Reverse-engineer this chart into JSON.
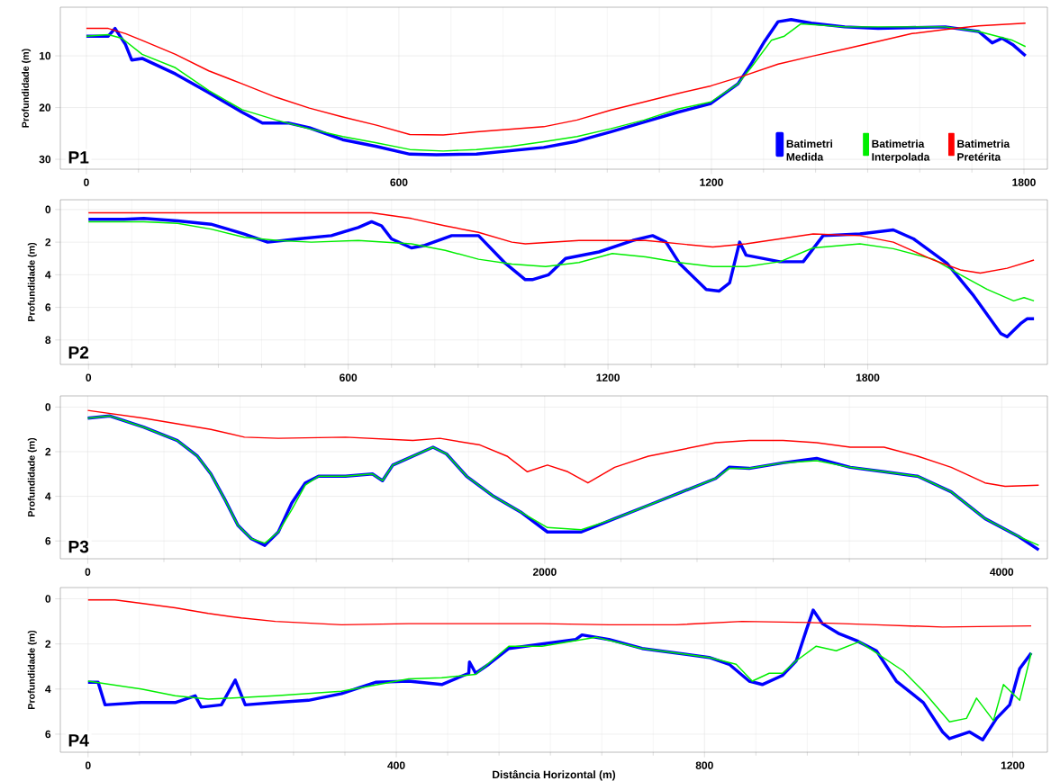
{
  "chart_data": [
    {
      "type": "line",
      "title": "P1",
      "ylabel": "Profundidade (m)",
      "xlim": [
        -50,
        1845
      ],
      "ylim": [
        31.9,
        0.6
      ],
      "xticks": [
        0,
        600,
        1200,
        1800
      ],
      "yticks": [
        10,
        20,
        30
      ],
      "grid": true,
      "legend": "bottom right",
      "series": [
        {
          "name": "Batimetri Medida",
          "color": "#0000ff",
          "x": [
            0,
            42,
            55,
            75,
            87,
            107,
            171,
            235,
            299,
            338,
            389,
            428,
            492,
            557,
            621,
            672,
            749,
            878,
            942,
            1006,
            1071,
            1135,
            1199,
            1251,
            1276,
            1302,
            1328,
            1353,
            1392,
            1456,
            1520,
            1649,
            1713,
            1739,
            1758,
            1778,
            1803
          ],
          "values": [
            6.2,
            6.2,
            4.7,
            7.8,
            10.8,
            10.5,
            13.5,
            17.1,
            20.9,
            23.0,
            23.0,
            23.9,
            26.2,
            27.5,
            29.0,
            29.1,
            29.0,
            27.7,
            26.5,
            24.7,
            22.8,
            20.9,
            19.2,
            15.4,
            11.6,
            7.2,
            3.4,
            3.0,
            3.7,
            4.4,
            4.7,
            4.4,
            5.3,
            7.5,
            6.6,
            7.8,
            10.0
          ]
        },
        {
          "name": "Batimetria Interpolada",
          "color": "#00ee00",
          "x": [
            0,
            42,
            68,
            107,
            171,
            235,
            299,
            364,
            428,
            492,
            557,
            621,
            685,
            749,
            814,
            878,
            942,
            1006,
            1071,
            1135,
            1199,
            1251,
            1276,
            1315,
            1340,
            1372,
            1456,
            1649,
            1713,
            1778,
            1803
          ],
          "values": [
            6.2,
            5.9,
            6.6,
            9.7,
            12.3,
            16.7,
            20.4,
            22.4,
            24.1,
            25.6,
            26.8,
            28.1,
            28.4,
            28.1,
            27.5,
            26.6,
            25.6,
            24.1,
            22.4,
            20.3,
            18.9,
            15.4,
            12.3,
            7.0,
            6.2,
            3.8,
            4.4,
            4.4,
            5.3,
            7.0,
            8.2
          ]
        },
        {
          "name": "Batimetria Pretérita",
          "color": "#ff0000",
          "x": [
            0,
            42,
            75,
            107,
            171,
            235,
            299,
            364,
            428,
            492,
            557,
            621,
            685,
            749,
            878,
            942,
            1006,
            1071,
            1135,
            1199,
            1264,
            1328,
            1392,
            1456,
            1520,
            1585,
            1649,
            1713,
            1803
          ],
          "values": [
            4.7,
            4.7,
            5.7,
            7.0,
            9.7,
            12.9,
            15.4,
            18.0,
            20.1,
            21.8,
            23.4,
            25.2,
            25.3,
            24.7,
            23.7,
            22.4,
            20.5,
            18.9,
            17.3,
            15.8,
            13.8,
            11.6,
            10.1,
            8.7,
            7.2,
            5.7,
            4.9,
            4.2,
            3.7
          ]
        }
      ]
    },
    {
      "type": "line",
      "title": "P2",
      "ylabel": "Profundidade (m)",
      "xlim": [
        -65,
        2215
      ],
      "ylim": [
        9.5,
        -0.6
      ],
      "xticks": [
        0,
        600,
        1200,
        1800
      ],
      "yticks": [
        0,
        2,
        4,
        6,
        8
      ],
      "grid": true,
      "series": [
        {
          "color": "#0000ff",
          "x": [
            0,
            82,
            128,
            206,
            283,
            360,
            414,
            484,
            561,
            623,
            654,
            677,
            700,
            746,
            777,
            839,
            901,
            963,
            1009,
            1025,
            1063,
            1102,
            1179,
            1257,
            1303,
            1334,
            1365,
            1427,
            1457,
            1481,
            1504,
            1519,
            1597,
            1651,
            1697,
            1782,
            1859,
            1906,
            1983,
            2045,
            2107,
            2122,
            2153,
            2168,
            2184
          ],
          "values": [
            0.6,
            0.6,
            0.55,
            0.7,
            0.9,
            1.5,
            2.0,
            1.8,
            1.6,
            1.1,
            0.75,
            1.0,
            1.8,
            2.35,
            2.2,
            1.6,
            1.6,
            3.3,
            4.3,
            4.3,
            4.0,
            3.0,
            2.6,
            1.9,
            1.6,
            2.0,
            3.3,
            4.9,
            5.0,
            4.5,
            2.0,
            2.8,
            3.2,
            3.2,
            1.6,
            1.5,
            1.25,
            1.8,
            3.3,
            5.3,
            7.6,
            7.8,
            7.0,
            6.7,
            6.7
          ]
        },
        {
          "color": "#00ee00",
          "x": [
            0,
            128,
            206,
            283,
            360,
            437,
            515,
            623,
            746,
            824,
            901,
            978,
            1056,
            1133,
            1210,
            1287,
            1365,
            1442,
            1519,
            1597,
            1674,
            1782,
            1859,
            1952,
            2014,
            2076,
            2137,
            2161,
            2184
          ],
          "values": [
            0.75,
            0.75,
            0.85,
            1.2,
            1.7,
            1.9,
            2.0,
            1.9,
            2.1,
            2.5,
            3.05,
            3.35,
            3.5,
            3.25,
            2.7,
            2.9,
            3.25,
            3.5,
            3.5,
            3.2,
            2.35,
            2.1,
            2.4,
            3.05,
            4.0,
            4.9,
            5.6,
            5.4,
            5.6
          ]
        },
        {
          "color": "#ff0000",
          "x": [
            0,
            654,
            746,
            824,
            901,
            978,
            1009,
            1133,
            1287,
            1442,
            1519,
            1674,
            1782,
            1859,
            1952,
            2014,
            2060,
            2122,
            2184
          ],
          "values": [
            0.2,
            0.2,
            0.55,
            1.0,
            1.4,
            2.0,
            2.1,
            1.9,
            1.9,
            2.3,
            2.1,
            1.5,
            1.6,
            2.0,
            3.1,
            3.7,
            3.9,
            3.6,
            3.1
          ]
        }
      ]
    },
    {
      "type": "line",
      "title": "P3",
      "ylabel": "Profundidade (m)",
      "xlim": [
        -120,
        4200
      ],
      "ylim": [
        6.8,
        -0.5
      ],
      "xticks": [
        0,
        2000,
        4000
      ],
      "yticks": [
        0,
        2,
        4,
        6
      ],
      "grid": true,
      "series": [
        {
          "color": "#0000ff",
          "x": [
            0,
            97,
            244,
            392,
            480,
            539,
            598,
            657,
            716,
            775,
            834,
            893,
            952,
            1010,
            1128,
            1246,
            1290,
            1335,
            1423,
            1511,
            1570,
            1658,
            1776,
            1894,
            2012,
            2160,
            2306,
            2454,
            2601,
            2748,
            2807,
            2895,
            3043,
            3190,
            3337,
            3485,
            3632,
            3779,
            3927,
            4074,
            4162
          ],
          "values": [
            0.5,
            0.4,
            0.9,
            1.5,
            2.2,
            3.0,
            4.1,
            5.3,
            5.9,
            6.2,
            5.6,
            4.3,
            3.4,
            3.1,
            3.1,
            3.0,
            3.3,
            2.6,
            2.2,
            1.8,
            2.1,
            3.1,
            4.0,
            4.7,
            5.6,
            5.6,
            5.0,
            4.4,
            3.8,
            3.2,
            2.7,
            2.75,
            2.5,
            2.3,
            2.7,
            2.9,
            3.1,
            3.8,
            5.0,
            5.8,
            6.4
          ]
        },
        {
          "color": "#00ee00",
          "x": [
            0,
            97,
            244,
            392,
            480,
            539,
            598,
            657,
            716,
            775,
            834,
            893,
            952,
            1010,
            1128,
            1246,
            1290,
            1335,
            1423,
            1511,
            1570,
            1658,
            1776,
            1894,
            2012,
            2160,
            2306,
            2454,
            2601,
            2748,
            2807,
            2895,
            3043,
            3190,
            3337,
            3485,
            3632,
            3779,
            3927,
            4074,
            4162
          ],
          "values": [
            0.5,
            0.4,
            0.9,
            1.5,
            2.2,
            3.0,
            4.1,
            5.3,
            5.9,
            6.1,
            5.6,
            4.6,
            3.5,
            3.1,
            3.1,
            3.0,
            3.3,
            2.6,
            2.2,
            1.8,
            2.1,
            3.1,
            4.0,
            4.7,
            5.4,
            5.5,
            5.0,
            4.4,
            3.8,
            3.2,
            2.75,
            2.75,
            2.5,
            2.4,
            2.7,
            2.9,
            3.1,
            3.8,
            5.0,
            5.8,
            6.2
          ]
        },
        {
          "color": "#ff0000",
          "x": [
            0,
            244,
            539,
            686,
            834,
            1128,
            1423,
            1541,
            1717,
            1835,
            1924,
            2012,
            2101,
            2189,
            2306,
            2454,
            2601,
            2748,
            2895,
            3043,
            3190,
            3337,
            3485,
            3632,
            3779,
            3927,
            4015,
            4162
          ],
          "values": [
            0.15,
            0.5,
            1.0,
            1.35,
            1.4,
            1.35,
            1.5,
            1.4,
            1.7,
            2.2,
            2.9,
            2.6,
            2.9,
            3.4,
            2.7,
            2.2,
            1.9,
            1.6,
            1.5,
            1.5,
            1.6,
            1.8,
            1.8,
            2.2,
            2.7,
            3.4,
            3.55,
            3.5
          ]
        }
      ]
    },
    {
      "type": "line",
      "title": "P4",
      "xlabel": "Distância Horizontal (m)",
      "ylabel": "Profundidade (m)",
      "xlim": [
        -36,
        1245
      ],
      "ylim": [
        6.8,
        -0.5
      ],
      "xticks": [
        0,
        400,
        800,
        1200
      ],
      "yticks": [
        0,
        2,
        4,
        6
      ],
      "grid": true,
      "series": [
        {
          "color": "#0000ff",
          "x": [
            0,
            13,
            22,
            69,
            113,
            139,
            147,
            173,
            191,
            204,
            243,
            286,
            329,
            373,
            416,
            459,
            494,
            495,
            503,
            520,
            546,
            589,
            633,
            641,
            676,
            719,
            763,
            806,
            832,
            858,
            875,
            901,
            919,
            932,
            941,
            953,
            975,
            997,
            1023,
            1049,
            1084,
            1109,
            1118,
            1144,
            1161,
            1179,
            1196,
            1209,
            1224
          ],
          "values": [
            3.7,
            3.7,
            4.7,
            4.6,
            4.6,
            4.3,
            4.8,
            4.7,
            3.6,
            4.7,
            4.6,
            4.5,
            4.2,
            3.7,
            3.65,
            3.8,
            3.3,
            2.8,
            3.3,
            2.9,
            2.2,
            2.0,
            1.8,
            1.6,
            1.8,
            2.2,
            2.4,
            2.6,
            2.9,
            3.65,
            3.8,
            3.4,
            2.75,
            1.4,
            0.5,
            1.1,
            1.55,
            1.85,
            2.3,
            3.65,
            4.6,
            5.9,
            6.2,
            5.9,
            6.25,
            5.3,
            4.7,
            3.1,
            2.4
          ]
        },
        {
          "color": "#00ee00",
          "x": [
            0,
            69,
            113,
            156,
            243,
            329,
            416,
            459,
            503,
            546,
            589,
            659,
            719,
            806,
            841,
            862,
            884,
            901,
            919,
            945,
            971,
            1001,
            1023,
            1058,
            1084,
            1118,
            1140,
            1153,
            1175,
            1188,
            1209,
            1224
          ],
          "values": [
            3.65,
            4.0,
            4.3,
            4.45,
            4.3,
            4.1,
            3.55,
            3.5,
            3.35,
            2.1,
            2.1,
            1.7,
            2.2,
            2.6,
            2.9,
            3.65,
            3.3,
            3.3,
            2.75,
            2.1,
            2.3,
            1.9,
            2.4,
            3.2,
            4.1,
            5.45,
            5.3,
            4.4,
            5.4,
            3.8,
            4.5,
            2.4
          ]
        },
        {
          "color": "#ff0000",
          "x": [
            0,
            35,
            69,
            113,
            156,
            199,
            243,
            329,
            416,
            589,
            676,
            763,
            849,
            936,
            1023,
            1109,
            1224
          ],
          "values": [
            0.05,
            0.05,
            0.2,
            0.4,
            0.65,
            0.85,
            1.0,
            1.15,
            1.1,
            1.1,
            1.15,
            1.15,
            1.0,
            1.05,
            1.15,
            1.25,
            1.2
          ]
        }
      ]
    }
  ]
}
